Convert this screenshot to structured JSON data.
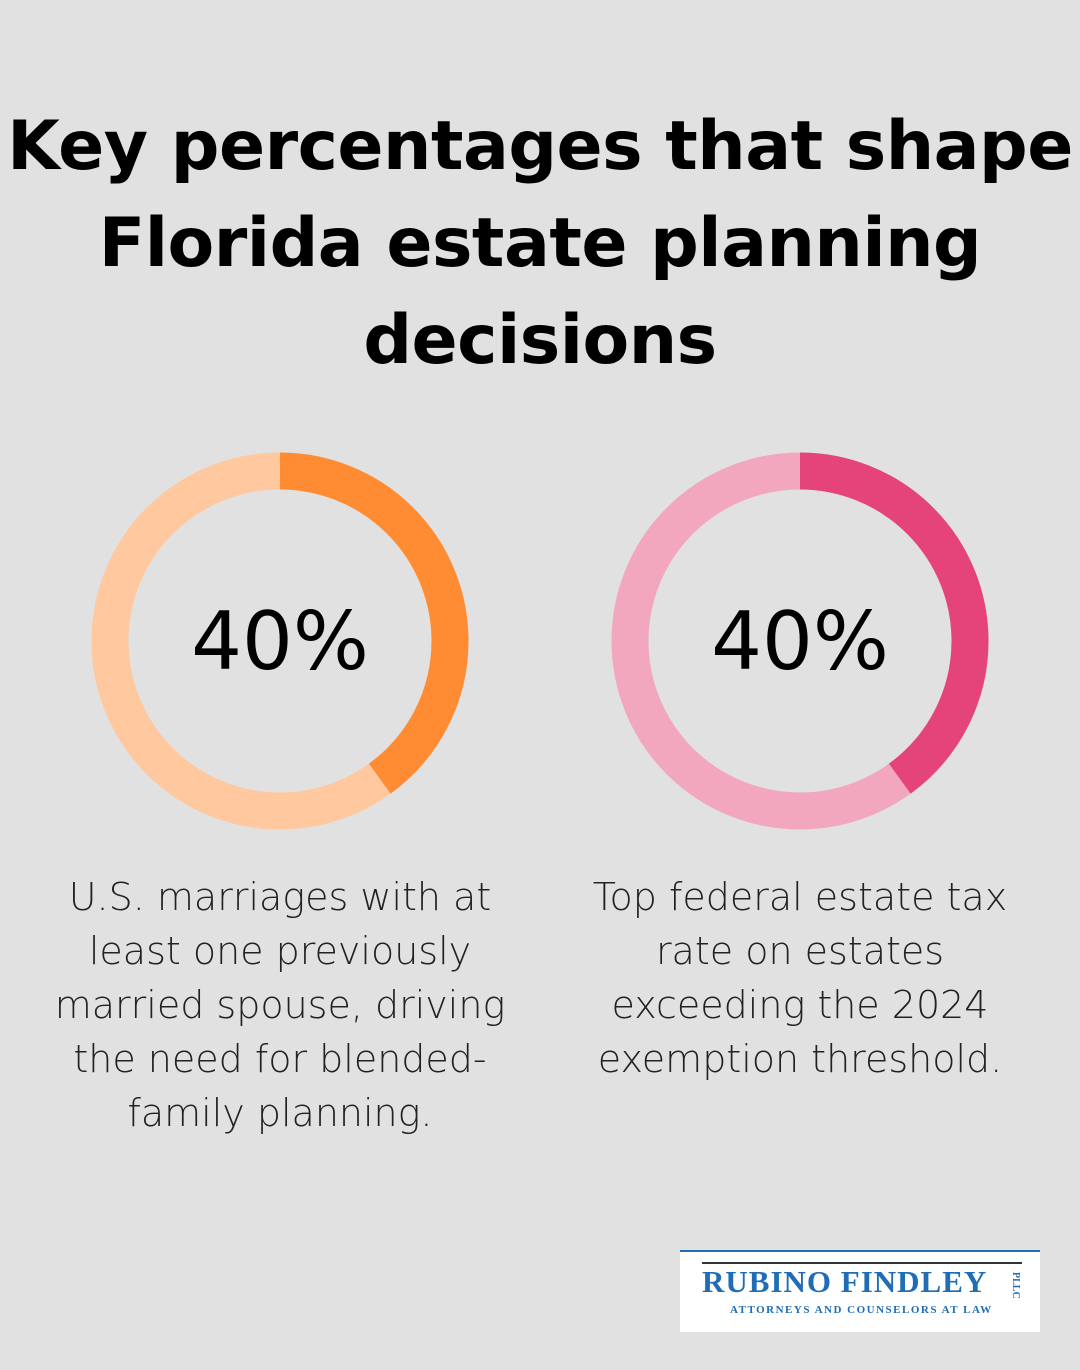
{
  "title": "Key percentages that shape Florida estate planning decisions",
  "chart_data": [
    {
      "type": "pie",
      "style": "donut",
      "value": 40,
      "label": "40%",
      "description": "U.S. marriages with at least one previously married spouse, driving the need for blended-family planning.",
      "colors": {
        "fill": "#ff8c33",
        "track": "#ffc89e"
      }
    },
    {
      "type": "pie",
      "style": "donut",
      "value": 40,
      "label": "40%",
      "description": "Top federal estate tax rate on estates exceeding the 2024 exemption threshold.",
      "colors": {
        "fill": "#e4447a",
        "track": "#f2a7bf"
      }
    }
  ],
  "logo": {
    "name": "RUBINO FINDLEY",
    "suffix": "PLLC",
    "tagline": "ATTORNEYS AND COUNSELORS AT LAW",
    "color": "#1f6db5"
  }
}
